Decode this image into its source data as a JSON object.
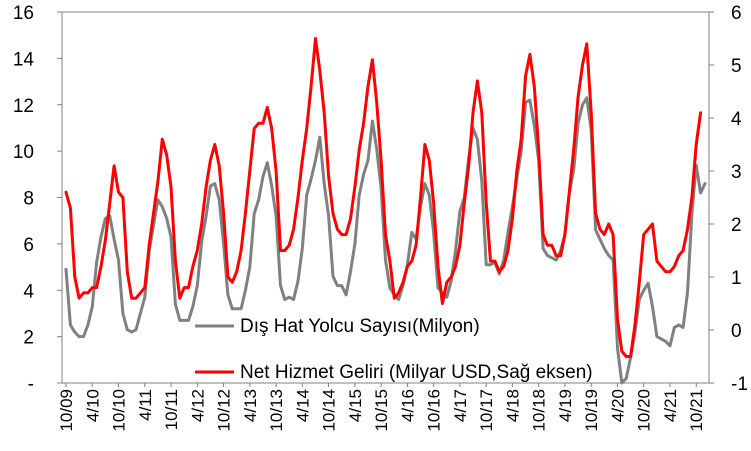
{
  "chart_data": {
    "type": "line",
    "title": "",
    "left_axis": {
      "ticks": [
        "-",
        "2",
        "4",
        "6",
        "8",
        "10",
        "12",
        "14",
        "16"
      ],
      "min": 0,
      "max": 16,
      "step": 2
    },
    "right_axis": {
      "ticks": [
        "-1",
        "0",
        "1",
        "2",
        "3",
        "4",
        "5",
        "6"
      ],
      "min": -1,
      "max": 6,
      "step": 1
    },
    "x_tick_labels": [
      "10/09",
      "4/10",
      "10/10",
      "4/11",
      "10/11",
      "4/12",
      "10/12",
      "4/13",
      "10/13",
      "4/14",
      "10/14",
      "4/15",
      "10/15",
      "4/16",
      "10/16",
      "4/17",
      "10/17",
      "4/18",
      "10/18",
      "4/19",
      "10/19",
      "4/20",
      "10/20",
      "4/21",
      "10/21"
    ],
    "grid": false,
    "legend_position": "bottom-center inside plot",
    "series": [
      {
        "name": "Dış Hat Yolcu Sayısı(Milyon)",
        "axis": "left",
        "color": "#808080",
        "start": "10/09",
        "values": [
          4.9,
          2.5,
          2.2,
          2.0,
          2.0,
          2.5,
          3.3,
          5.2,
          6.3,
          7.1,
          7.2,
          6.2,
          5.3,
          3.0,
          2.3,
          2.2,
          2.3,
          3.0,
          3.7,
          5.7,
          6.8,
          7.9,
          7.6,
          7.1,
          6.3,
          3.4,
          2.7,
          2.7,
          2.7,
          3.3,
          4.2,
          6.1,
          7.2,
          8.5,
          8.6,
          7.9,
          6.0,
          3.8,
          3.2,
          3.2,
          3.2,
          4.0,
          5.0,
          7.3,
          7.9,
          8.9,
          9.5,
          8.5,
          7.2,
          4.2,
          3.6,
          3.7,
          3.6,
          4.4,
          5.8,
          8.1,
          8.8,
          9.6,
          10.6,
          8.6,
          7.2,
          4.6,
          4.2,
          4.2,
          3.8,
          4.8,
          6.0,
          8.1,
          9.0,
          9.6,
          11.3,
          10.1,
          8.4,
          5.3,
          4.1,
          3.8,
          3.6,
          4.2,
          5.1,
          6.5,
          6.2,
          7.6,
          8.6,
          8.1,
          6.5,
          4.1,
          3.9,
          3.7,
          4.4,
          5.7,
          7.4,
          8.0,
          9.7,
          11.0,
          10.5,
          8.7,
          5.1,
          5.1,
          5.2,
          4.7,
          5.3,
          6.5,
          7.6,
          8.8,
          10.0,
          12.1,
          12.2,
          11.1,
          9.6,
          5.8,
          5.5,
          5.4,
          5.3,
          5.7,
          6.4,
          8.2,
          9.2,
          11.2,
          12.0,
          12.3,
          10.9,
          6.6,
          6.2,
          5.8,
          5.5,
          5.3,
          1.5,
          0.0,
          0.2,
          1.1,
          2.2,
          3.6,
          4.0,
          4.3,
          3.3,
          2.0,
          1.9,
          1.8,
          1.6,
          2.4,
          2.5,
          2.4,
          3.9,
          7.3,
          9.4,
          8.2,
          8.6
        ]
      },
      {
        "name": "Net Hizmet Geliri (Milyar USD,Sağ eksen)",
        "axis": "right",
        "color": "#ff0000",
        "start": "10/09",
        "values": [
          2.6,
          2.3,
          1.0,
          0.6,
          0.7,
          0.7,
          0.8,
          0.8,
          1.2,
          1.7,
          2.4,
          3.1,
          2.6,
          2.5,
          1.1,
          0.6,
          0.6,
          0.7,
          0.8,
          1.6,
          2.2,
          2.8,
          3.6,
          3.3,
          2.7,
          1.3,
          0.6,
          0.8,
          0.8,
          1.2,
          1.5,
          2.0,
          2.7,
          3.2,
          3.5,
          3.1,
          2.2,
          1.0,
          0.9,
          1.1,
          1.5,
          2.2,
          3.0,
          3.8,
          3.9,
          3.9,
          4.2,
          3.8,
          3.0,
          1.5,
          1.5,
          1.6,
          1.9,
          2.5,
          3.2,
          3.8,
          4.6,
          5.5,
          4.9,
          4.1,
          2.9,
          2.2,
          1.9,
          1.8,
          1.8,
          2.1,
          2.7,
          3.4,
          3.9,
          4.6,
          5.1,
          4.3,
          3.2,
          1.8,
          1.3,
          0.6,
          0.7,
          0.9,
          1.2,
          1.3,
          1.6,
          2.5,
          3.5,
          3.2,
          2.4,
          1.2,
          0.5,
          0.9,
          1.0,
          1.2,
          1.6,
          2.4,
          3.1,
          4.1,
          4.7,
          4.1,
          2.4,
          1.3,
          1.3,
          1.1,
          1.2,
          1.5,
          2.1,
          3.0,
          3.6,
          4.8,
          5.2,
          4.6,
          3.4,
          1.8,
          1.6,
          1.6,
          1.4,
          1.4,
          1.8,
          2.6,
          3.4,
          4.4,
          5.0,
          5.4,
          4.1,
          2.2,
          1.9,
          1.8,
          2.0,
          1.8,
          0.2,
          -0.4,
          -0.5,
          -0.5,
          0.1,
          0.9,
          1.8,
          1.9,
          2.0,
          1.3,
          1.2,
          1.1,
          1.1,
          1.2,
          1.4,
          1.5,
          1.9,
          2.5,
          3.5,
          4.1
        ]
      }
    ]
  }
}
